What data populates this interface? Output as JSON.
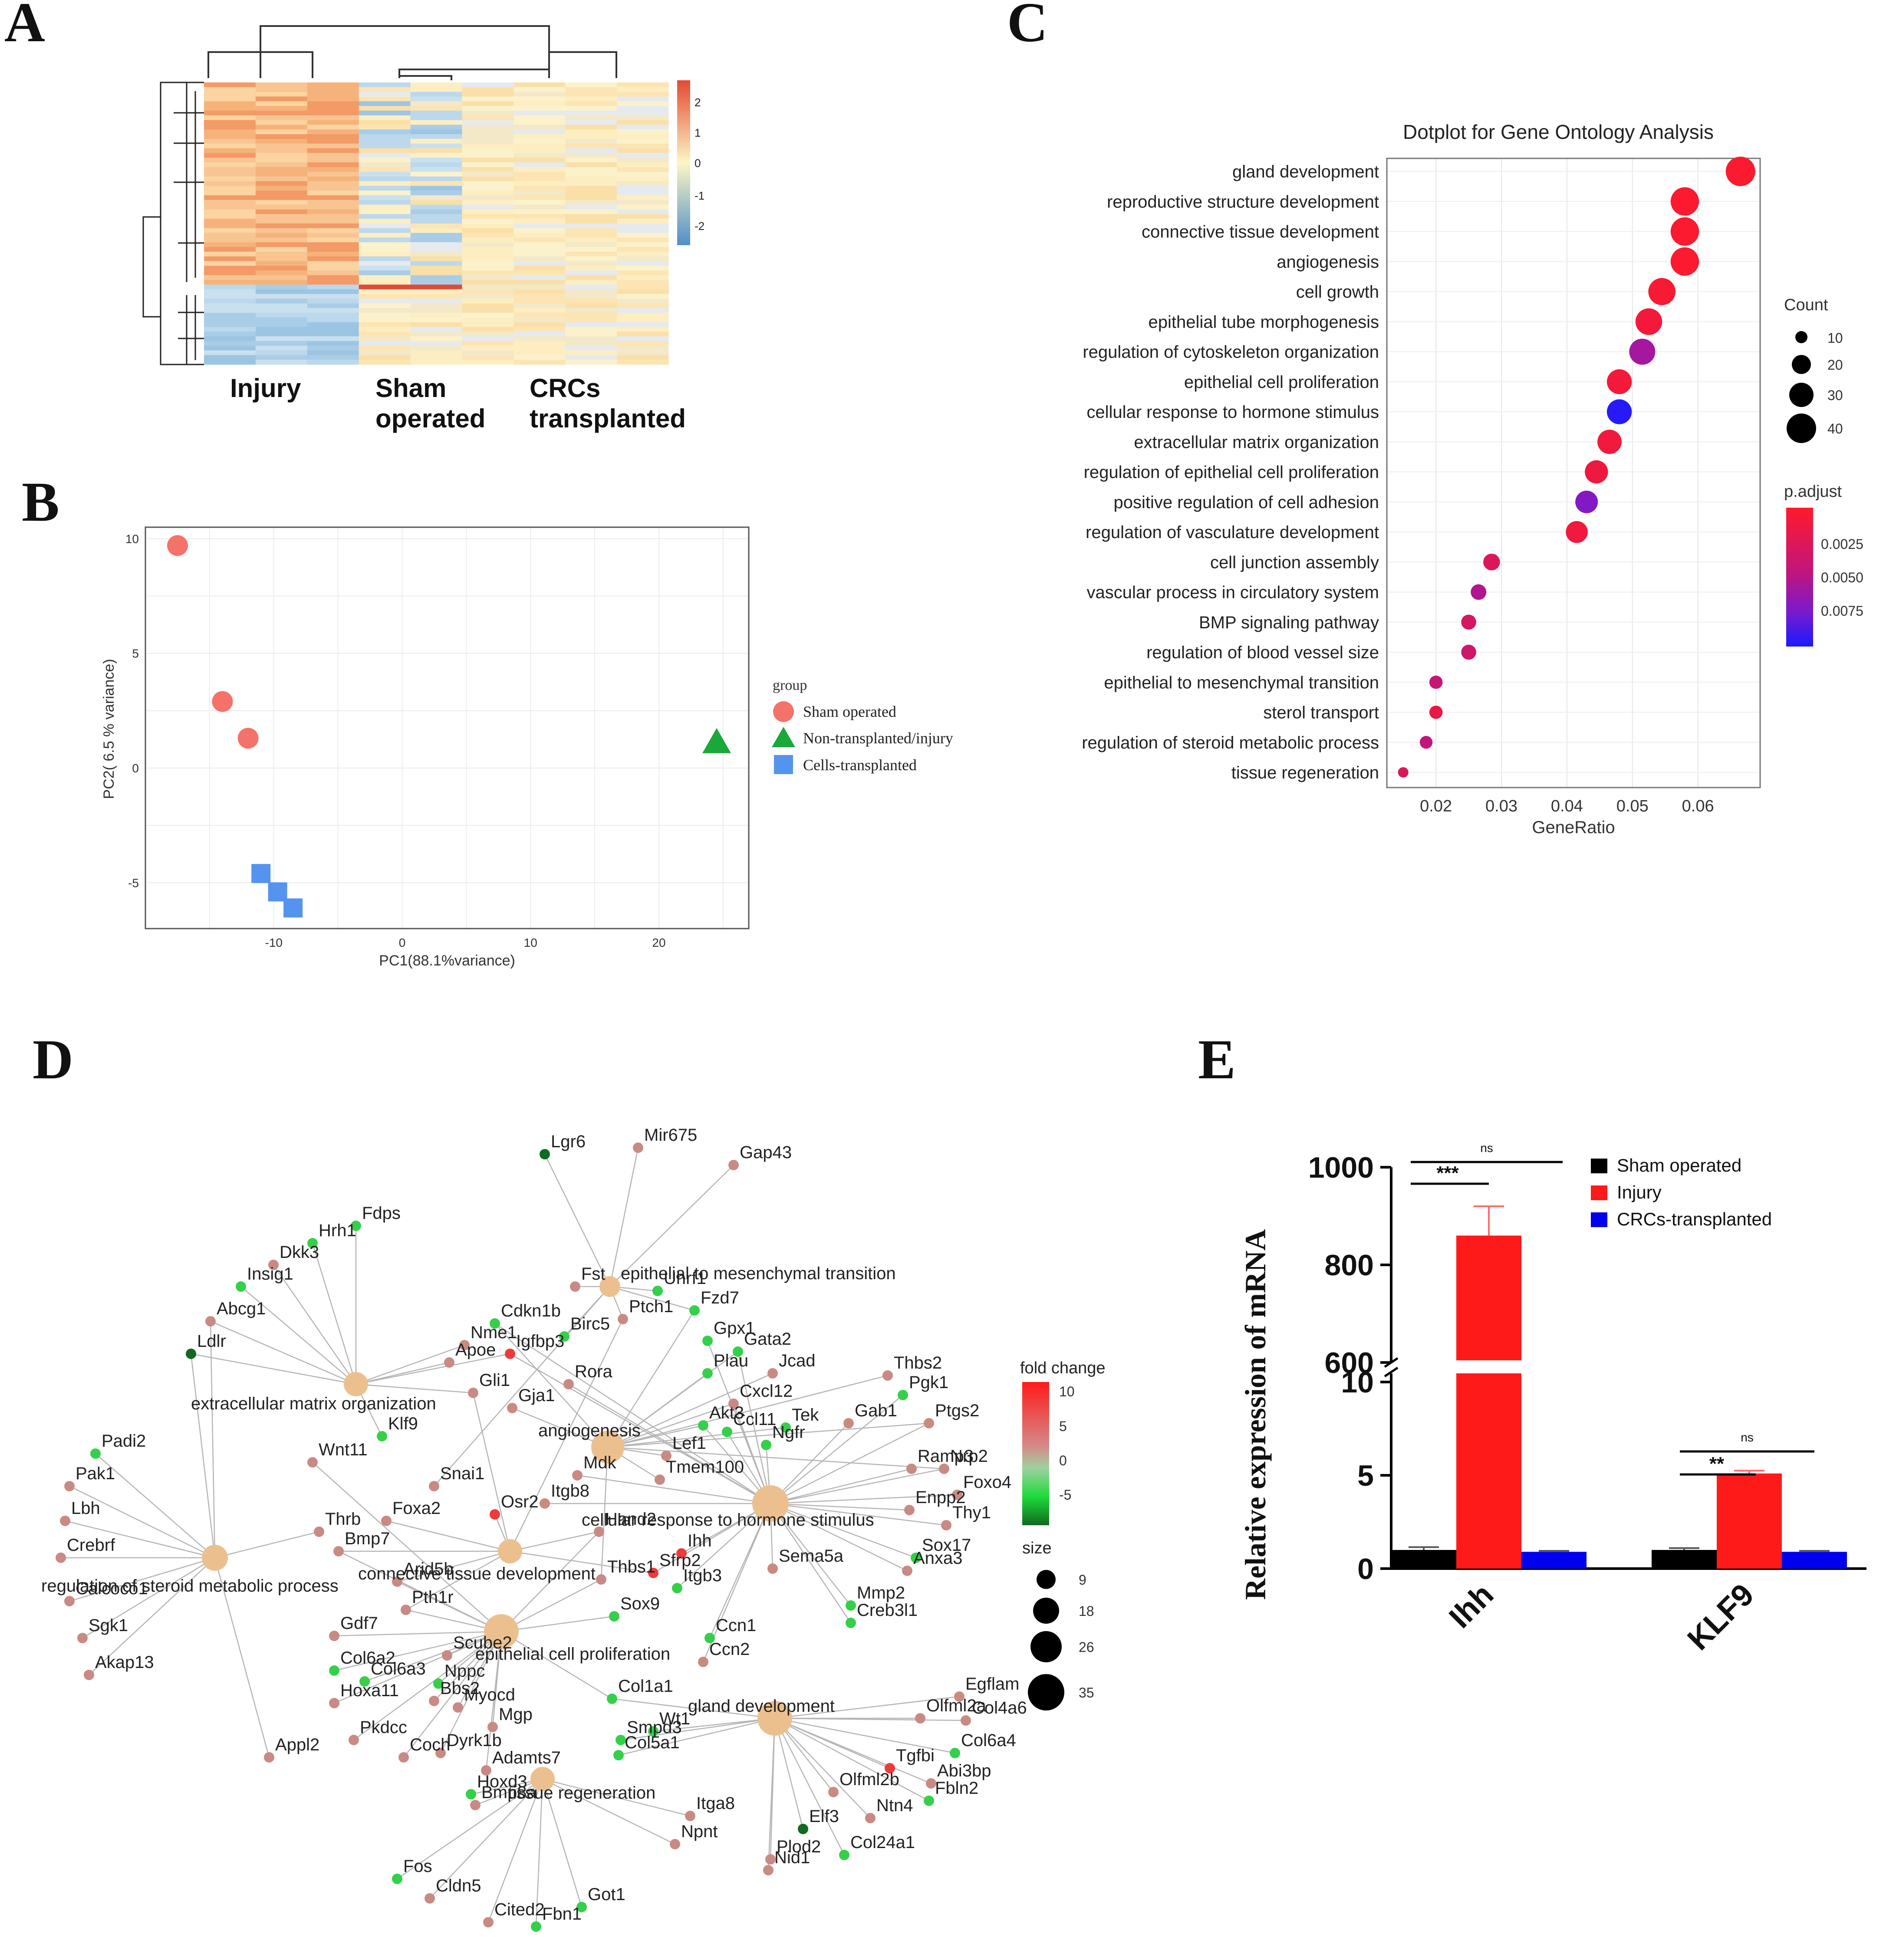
{
  "panels": {
    "A": {
      "label": "A",
      "groups": [
        "Injury",
        "Sham",
        "operated",
        "CRCs",
        "transplanted"
      ],
      "scale_ticks": [
        "2",
        "1",
        "0",
        "-1",
        "-2"
      ],
      "colors": {
        "high": "#e34a33",
        "mid": "#fdf6c3",
        "low": "#4f8fc9"
      }
    },
    "B": {
      "label": "B",
      "xlabel": "PC1(88.1%variance)",
      "ylabel": "PC2( 6.5 % variance)",
      "xticks": [
        "-10",
        "0",
        "10",
        "20"
      ],
      "yticks": [
        "10",
        "5",
        "0",
        "-5"
      ],
      "legend_title": "group",
      "legend": [
        "Sham operated",
        "Non-transplanted/injury",
        "Cells-transplanted"
      ],
      "colors": {
        "sham": "#f4726a",
        "injury": "#1aa83a",
        "cells": "#5594ee"
      }
    },
    "C": {
      "label": "C",
      "title": "Dotplot for Gene Ontology Analysis",
      "xlabel": "GeneRatio",
      "xticks": [
        "0.02",
        "0.03",
        "0.04",
        "0.05",
        "0.06"
      ],
      "count_title": "Count",
      "count_labels": [
        "10",
        "20",
        "30",
        "40"
      ],
      "padj_title": "p.adjust",
      "padj_labels": [
        "0.0025",
        "0.0050",
        "0.0075"
      ]
    },
    "D": {
      "label": "D",
      "foldchange_title": "fold change",
      "foldchange_ticks": [
        "10",
        "5",
        "0",
        "-5"
      ],
      "size_title": "size",
      "size_labels": [
        "9",
        "18",
        "26",
        "35"
      ],
      "terms": [
        "epithelial to mesenchymal transition",
        "extracellular matrix organization",
        "angiogenesis",
        "cellular response to hormone stimulus",
        "regulation of steroid metabolic process",
        "connective tissue development",
        "epithelial cell proliferation",
        "gland development",
        "tissue regeneration"
      ],
      "genes": [
        "Lgr6",
        "Mir675",
        "Gap43",
        "Fdps",
        "Hrh1",
        "Dkk3",
        "Insig1",
        "Abcg1",
        "Ldlr",
        "Fst",
        "Cdkn1b",
        "Birc5",
        "Uhrf1",
        "Fzd7",
        "Ptch1",
        "Nme1",
        "Igfbp3",
        "Gpx1",
        "Gata2",
        "Thbs2",
        "Pgk1",
        "Apoe",
        "Rora",
        "Plau",
        "Jcad",
        "Gli1",
        "Gja1",
        "Cxcl12",
        "Gab1",
        "Ptgs2",
        "Akt3",
        "Tek",
        "Ccl11",
        "Ngfr",
        "Nrp2",
        "Padi2",
        "Klf9",
        "Wnt11",
        "Lef1",
        "Ramp3",
        "Foxo4",
        "Pak1",
        "Mdk",
        "Tmem100",
        "Enpp2",
        "Snai1",
        "Thy1",
        "Lbh",
        "Thrb",
        "Foxa2",
        "Osr2",
        "Itgb8",
        "Crebrf",
        "Bmp7",
        "Sfrp2",
        "Ihh",
        "Sox17",
        "Anxa3",
        "Hand2",
        "Sema5a",
        "Calcoco1",
        "Arid5b",
        "Thbs1",
        "Itgb3",
        "Mmp2",
        "Pth1r",
        "Gdf7",
        "Sox9",
        "Ccn1",
        "Creb3l1",
        "Sgk1",
        "Akap13",
        "Scube2",
        "Ccn2",
        "Col6a2",
        "Col6a3",
        "Nppc",
        "Col1a1",
        "Egflam",
        "Hoxa11",
        "Bbs2",
        "Myocd",
        "Olfml2a",
        "Col4a6",
        "Pkdcc",
        "Mgp",
        "Smpd3",
        "Wt1",
        "Col6a4",
        "Dyrk1b",
        "Adamts7",
        "Tgfbi",
        "Abi3bp",
        "Appl2",
        "Coch",
        "Col5a1",
        "Hoxd3",
        "Olfml2b",
        "Fbln2",
        "Bmp8a",
        "Itga8",
        "Elf3",
        "Ntn4",
        "Npnt",
        "Plod2",
        "Col24a1",
        "Nid1",
        "Fos",
        "Cldn5",
        "Got1",
        "Cited2",
        "Fbn1"
      ]
    },
    "E": {
      "label": "E",
      "ylabel": "Relative expression of mRNA",
      "yticks_upper": [
        "1000",
        "800",
        "600"
      ],
      "yticks_lower": [
        "10",
        "5",
        "0"
      ],
      "legend": [
        "Sham operated",
        "Injury",
        "CRCs-transplanted"
      ],
      "sig": {
        "ihh_main": "***",
        "ihh_ns": "ns",
        "klf9_main": "**",
        "klf9_ns": "ns"
      }
    }
  },
  "chart_data": [
    {
      "id": "B",
      "type": "scatter",
      "title": "",
      "xlabel": "PC1(88.1%variance)",
      "ylabel": "PC2( 6.5 % variance)",
      "xlim": [
        -20,
        27
      ],
      "ylim": [
        -7,
        10.5
      ],
      "series": [
        {
          "name": "Sham operated",
          "points": [
            [
              -17.5,
              9.7
            ],
            [
              -14,
              2.9
            ],
            [
              -12,
              1.3
            ]
          ]
        },
        {
          "name": "Non-transplanted/injury",
          "points": [
            [
              24.5,
              1.1
            ]
          ]
        },
        {
          "name": "Cells-transplanted",
          "points": [
            [
              -11,
              -4.6
            ],
            [
              -9.7,
              -5.4
            ],
            [
              -8.5,
              -6.1
            ]
          ]
        }
      ]
    },
    {
      "id": "C",
      "type": "scatter",
      "title": "Dotplot for Gene Ontology Analysis",
      "xlabel": "GeneRatio",
      "xlim": [
        0.0125,
        0.0695
      ],
      "terms": [
        "gland development",
        "reproductive structure development",
        "connective tissue development",
        "angiogenesis",
        "cell growth",
        "epithelial tube morphogenesis",
        "regulation of cytoskeleton organization",
        "epithelial cell proliferation",
        "cellular response to hormone stimulus",
        "extracellular matrix organization",
        "regulation of epithelial cell proliferation",
        "positive regulation of cell adhesion",
        "regulation of vasculature development",
        "cell junction assembly",
        "vascular process in circulatory system",
        "BMP signaling pathway",
        "regulation of blood vessel size",
        "epithelial to mesenchymal transition",
        "sterol transport",
        "regulation of steroid metabolic process",
        "tissue regeneration"
      ],
      "gene_ratio": [
        0.0665,
        0.058,
        0.058,
        0.058,
        0.0545,
        0.0525,
        0.0515,
        0.048,
        0.048,
        0.0465,
        0.0445,
        0.043,
        0.0415,
        0.0285,
        0.0265,
        0.025,
        0.025,
        0.02,
        0.02,
        0.0185,
        0.015
      ],
      "count": [
        42,
        40,
        40,
        40,
        38,
        37,
        36,
        34,
        34,
        33,
        31,
        30,
        29,
        20,
        18,
        17,
        17,
        14,
        14,
        13,
        9
      ],
      "p_adjust": [
        0.0002,
        0.0003,
        0.0003,
        0.0003,
        0.0005,
        0.0008,
        0.0055,
        0.0008,
        0.0092,
        0.001,
        0.0012,
        0.0068,
        0.001,
        0.0025,
        0.005,
        0.003,
        0.0035,
        0.004,
        0.0015,
        0.0042,
        0.0025
      ]
    },
    {
      "id": "E",
      "type": "bar",
      "categories": [
        "Ihh",
        "KLF9"
      ],
      "series": [
        {
          "name": "Sham operated",
          "values": [
            1,
            1
          ],
          "errors": [
            0.15,
            0.1
          ],
          "color": "#000000"
        },
        {
          "name": "Injury",
          "values": [
            860,
            5.1
          ],
          "errors": [
            60,
            0.15
          ],
          "color": "#ff1a1a"
        },
        {
          "name": "CRCs-transplanted",
          "values": [
            0.9,
            0.9
          ],
          "errors": [
            0.05,
            0.05
          ],
          "color": "#0000ee"
        }
      ],
      "ylabel": "Relative expression of mRNA",
      "axis_break": [
        11,
        560
      ]
    }
  ]
}
